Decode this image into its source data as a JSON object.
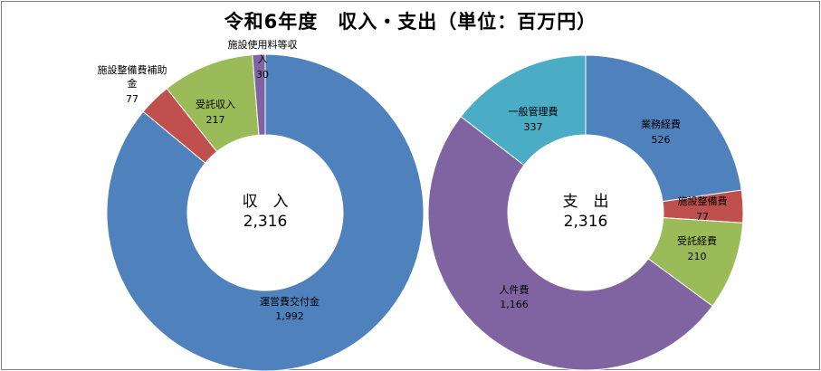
{
  "title": "令和6年度　収入・支出（単位：百万円）",
  "chart_data": [
    {
      "type": "pie",
      "variant": "donut",
      "center_label": "収　入",
      "center_total": "2,316",
      "categories": [
        "運営費交付金",
        "施設整備費補助金",
        "受託収入",
        "施設使用料等収入"
      ],
      "values": [
        1992,
        77,
        217,
        30
      ],
      "value_labels": [
        "1,992",
        "77",
        "217",
        "30"
      ],
      "colors": [
        "#4f81bd",
        "#c0504d",
        "#9bbb59",
        "#8064a2"
      ]
    },
    {
      "type": "pie",
      "variant": "donut",
      "center_label": "支　出",
      "center_total": "2,316",
      "categories": [
        "業務経費",
        "施設整備費",
        "受託経費",
        "人件費",
        "一般管理費"
      ],
      "values": [
        526,
        77,
        210,
        1166,
        337
      ],
      "value_labels": [
        "526",
        "77",
        "210",
        "1,166",
        "337"
      ],
      "colors": [
        "#4f81bd",
        "#c0504d",
        "#9bbb59",
        "#8064a2",
        "#4bacc6"
      ]
    }
  ]
}
